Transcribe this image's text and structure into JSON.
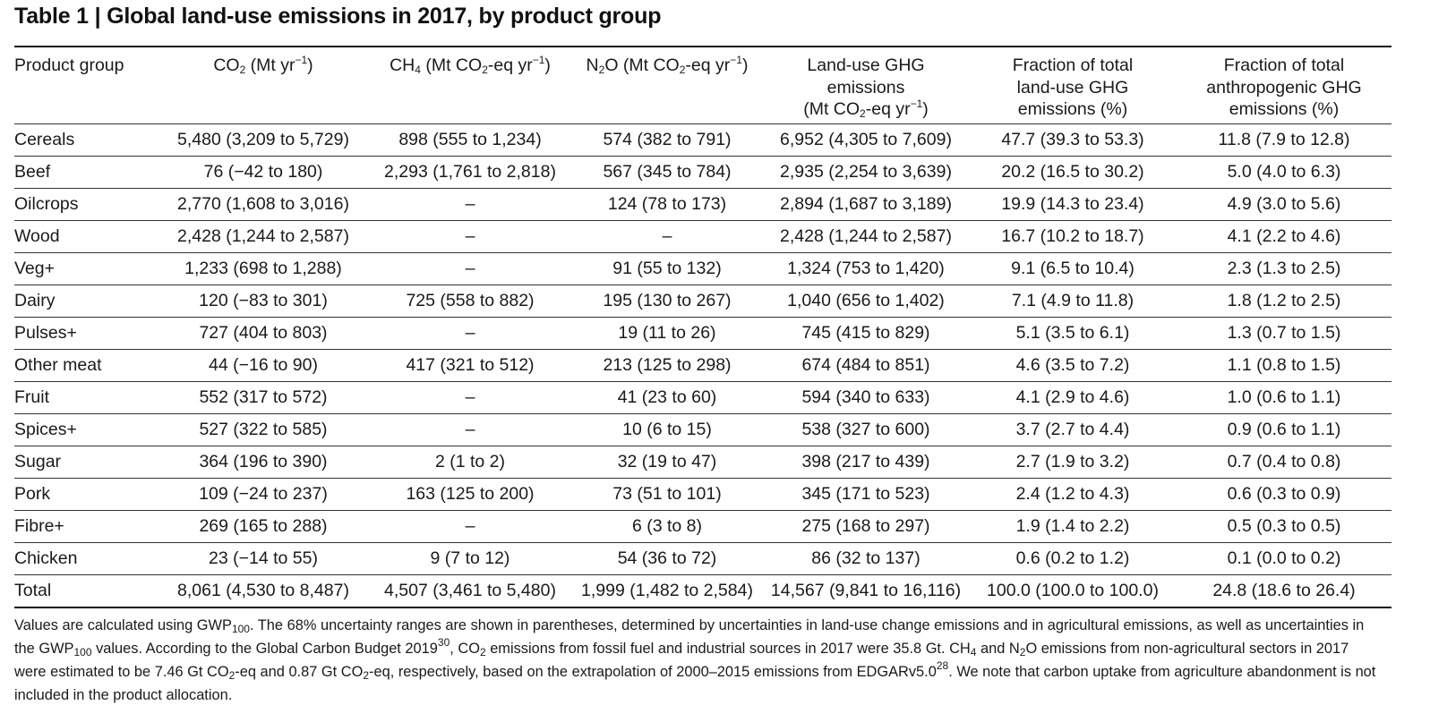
{
  "title": "Table 1 | Global land-use emissions in 2017, by product group",
  "header": {
    "product_group": "Product group",
    "co2": {
      "a": "CO",
      "b": "2",
      "c": " (Mt yr",
      "d": "−1",
      "e": ")"
    },
    "ch4": {
      "a": "CH",
      "b": "4",
      "c": " (Mt CO",
      "d": "2",
      "e": "-eq yr",
      "f": "−1",
      "g": ")"
    },
    "n2o": {
      "a": "N",
      "b": "2",
      "c": "O (Mt CO",
      "d": "2",
      "e": "-eq yr",
      "f": "−1",
      "g": ")"
    },
    "ghg": {
      "line1": "Land-use GHG",
      "line2": "emissions",
      "a": "(Mt CO",
      "b": "2",
      "c": "-eq yr",
      "d": "−1",
      "e": ")"
    },
    "frac_land": {
      "line1": "Fraction of total",
      "line2": "land-use GHG",
      "line3": "emissions (%)"
    },
    "frac_anthro": {
      "line1": "Fraction of total",
      "line2": "anthropogenic GHG",
      "line3": "emissions (%)"
    }
  },
  "rows": [
    [
      "Cereals",
      "5,480 (3,209 to 5,729)",
      "898 (555 to 1,234)",
      "574 (382 to 791)",
      "6,952 (4,305 to 7,609)",
      "47.7 (39.3 to 53.3)",
      "11.8 (7.9 to 12.8)"
    ],
    [
      "Beef",
      "76 (−42 to 180)",
      "2,293 (1,761 to 2,818)",
      "567 (345 to 784)",
      "2,935 (2,254 to 3,639)",
      "20.2 (16.5 to 30.2)",
      "5.0 (4.0 to 6.3)"
    ],
    [
      "Oilcrops",
      "2,770 (1,608 to 3,016)",
      "–",
      "124 (78 to 173)",
      "2,894 (1,687 to 3,189)",
      "19.9 (14.3 to 23.4)",
      "4.9 (3.0 to 5.6)"
    ],
    [
      "Wood",
      "2,428 (1,244 to 2,587)",
      "–",
      "–",
      "2,428 (1,244 to 2,587)",
      "16.7 (10.2 to 18.7)",
      "4.1 (2.2 to 4.6)"
    ],
    [
      "Veg+",
      "1,233 (698 to 1,288)",
      "–",
      "91 (55 to 132)",
      "1,324 (753 to 1,420)",
      "9.1 (6.5 to 10.4)",
      "2.3 (1.3 to 2.5)"
    ],
    [
      "Dairy",
      "120 (−83 to 301)",
      "725 (558 to 882)",
      "195 (130 to 267)",
      "1,040 (656 to 1,402)",
      "7.1 (4.9 to 11.8)",
      "1.8 (1.2 to 2.5)"
    ],
    [
      "Pulses+",
      "727 (404 to 803)",
      "–",
      "19 (11 to 26)",
      "745 (415 to 829)",
      "5.1 (3.5 to 6.1)",
      "1.3 (0.7 to 1.5)"
    ],
    [
      "Other meat",
      "44 (−16 to 90)",
      "417 (321 to 512)",
      "213 (125 to 298)",
      "674 (484 to 851)",
      "4.6 (3.5 to 7.2)",
      "1.1 (0.8 to 1.5)"
    ],
    [
      "Fruit",
      "552 (317 to 572)",
      "–",
      "41 (23 to 60)",
      "594 (340 to 633)",
      "4.1 (2.9 to 4.6)",
      "1.0 (0.6 to 1.1)"
    ],
    [
      "Spices+",
      "527 (322 to 585)",
      "–",
      "10 (6 to 15)",
      "538 (327 to 600)",
      "3.7 (2.7 to 4.4)",
      "0.9 (0.6 to 1.1)"
    ],
    [
      "Sugar",
      "364 (196 to 390)",
      "2 (1 to 2)",
      "32 (19 to 47)",
      "398 (217 to 439)",
      "2.7 (1.9 to 3.2)",
      "0.7 (0.4 to 0.8)"
    ],
    [
      "Pork",
      "109 (−24 to 237)",
      "163 (125 to 200)",
      "73 (51 to 101)",
      "345 (171 to 523)",
      "2.4 (1.2 to 4.3)",
      "0.6 (0.3 to 0.9)"
    ],
    [
      "Fibre+",
      "269 (165 to 288)",
      "–",
      "6 (3 to 8)",
      "275 (168 to 297)",
      "1.9 (1.4 to 2.2)",
      "0.5 (0.3 to 0.5)"
    ],
    [
      "Chicken",
      "23 (−14 to 55)",
      "9 (7 to 12)",
      "54 (36 to 72)",
      "86 (32 to 137)",
      "0.6 (0.2 to 1.2)",
      "0.1 (0.0 to 0.2)"
    ],
    [
      "Total",
      "8,061 (4,530 to 8,487)",
      "4,507 (3,461 to 5,480)",
      "1,999 (1,482 to 2,584)",
      "14,567 (9,841 to 16,116)",
      "100.0 (100.0 to 100.0)",
      "24.8 (18.6 to 26.4)"
    ]
  ],
  "footnote": {
    "p1": "Values are calculated using GWP",
    "p1_sub": "100",
    "p2": ". The 68% uncertainty ranges are shown in parentheses, determined by uncertainties in land-use change emissions and in agricultural emissions, as well as uncertainties in the GWP",
    "p2_sub": "100",
    "p3": " values. According to the Global Carbon Budget 2019",
    "p3_sup": "30",
    "p4": ", CO",
    "p4_sub": "2",
    "p5": " emissions from fossil fuel and industrial sources in 2017 were 35.8 Gt. CH",
    "p5_sub": "4",
    "p6": " and N",
    "p6_sub": "2",
    "p7": "O emissions from non-agricultural sectors in 2017 were estimated to be 7.46 Gt CO",
    "p7_sub": "2",
    "p8": "-eq and 0.87 Gt CO",
    "p8_sub": "2",
    "p9": "-eq, respectively, based on the extrapolation of 2000–2015 emissions from EDGARv5.0",
    "p9_sup": "28",
    "p10": ". We note that carbon uptake from agriculture abandonment is not included in the product allocation."
  }
}
